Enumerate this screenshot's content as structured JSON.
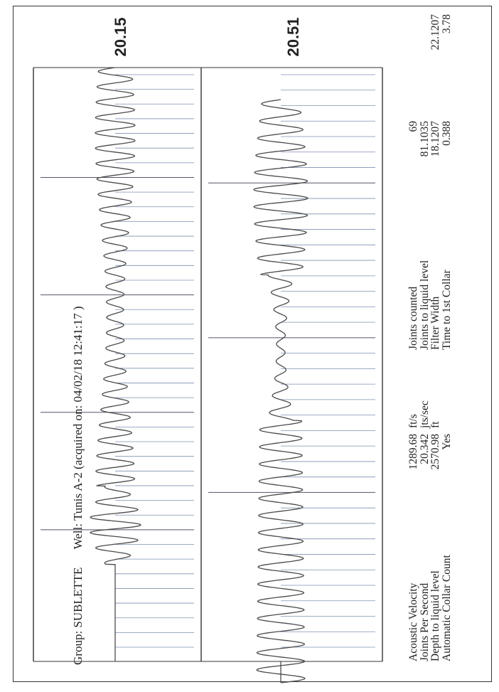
{
  "header": {
    "group_label": "Group:",
    "group": "SUBLETTE",
    "well_label": "Well:",
    "well": "Tunis A-2 (acquired on: 04/02/18 12:41:17 )"
  },
  "chart_data": [
    {
      "type": "line",
      "title": "",
      "series": [
        {
          "waveform": "collar-echo oscillation",
          "cycles": 34
        }
      ],
      "collar_markers": 40,
      "major_markers": 4,
      "value_label": "20.15",
      "grid": false
    },
    {
      "type": "line",
      "title": "",
      "series": [
        {
          "waveform": "liquid-level echo oscillation",
          "cycles": 34
        }
      ],
      "collar_markers": 38,
      "major_markers": 3,
      "value_label": "20.51",
      "grid": false
    }
  ],
  "stats_left": [
    {
      "label": "Acoustic Velocity",
      "value": "1289.68",
      "unit": "ft/s"
    },
    {
      "label": "Joints Per Second",
      "value": "20.342",
      "unit": "jts/sec"
    },
    {
      "label": "Depth to liquid level",
      "value": "2570.98",
      "unit": "ft"
    },
    {
      "label": "Automatic Collar Count",
      "value": "Yes",
      "unit": ""
    }
  ],
  "stats_right": [
    {
      "label": "Joints counted",
      "value": "69",
      "extra": ""
    },
    {
      "label": "Joints to liquid level",
      "value": "81.1035",
      "extra": ""
    },
    {
      "label": "Filter Width",
      "value": "18.1207",
      "extra": "22.1207"
    },
    {
      "label": "Time to 1st Collar",
      "value": "0.388",
      "extra": "3.78"
    }
  ],
  "colors": {
    "trace": "#4a4a4a",
    "marker": "#7f8fb0",
    "marker_major": "#555566",
    "frame": "#333333"
  }
}
